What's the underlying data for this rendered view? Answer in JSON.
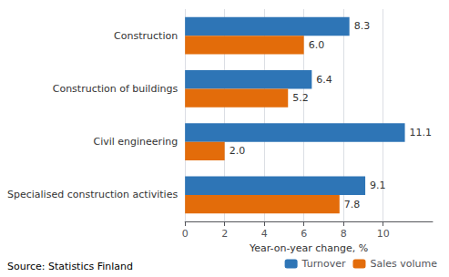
{
  "chart_data": {
    "type": "bar",
    "orientation": "horizontal",
    "categories": [
      "Construction",
      "Construction of buildings",
      "Civil engineering",
      "Specialised construction activities"
    ],
    "series": [
      {
        "name": "Turnover",
        "color": "#2E75B6",
        "values": [
          8.3,
          6.4,
          11.1,
          9.1
        ],
        "value_labels": [
          "8.3",
          "6.4",
          "11.1",
          "9.1"
        ]
      },
      {
        "name": "Sales volume",
        "color": "#E36C0A",
        "values": [
          6.0,
          5.2,
          2.0,
          7.8
        ],
        "value_labels": [
          "6.0",
          "5.2",
          "2.0",
          "7.8"
        ]
      }
    ],
    "xlabel": "Year-on-year change, %",
    "xlim": [
      0,
      12.5
    ],
    "xticks": [
      0,
      2,
      4,
      6,
      8,
      10
    ],
    "grid": true,
    "legend": "lower right",
    "data_labels": true,
    "annotations": [
      "Source: Statistics Finland"
    ]
  }
}
